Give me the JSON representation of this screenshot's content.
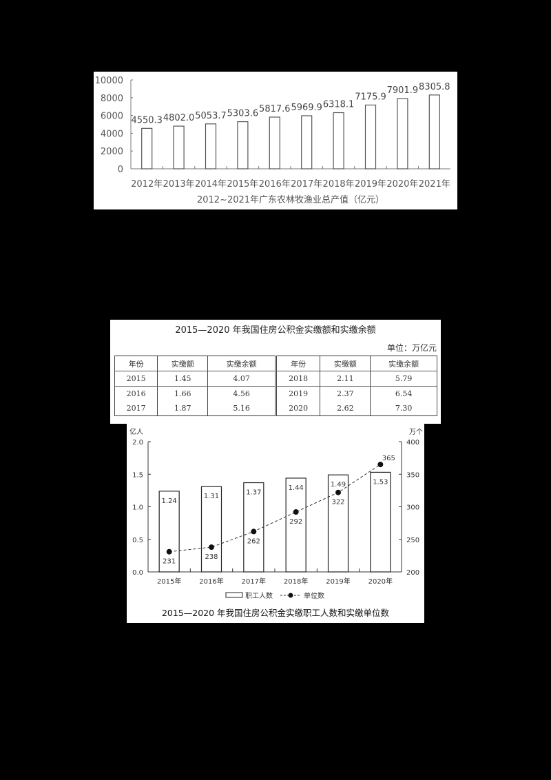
{
  "chart_data": [
    {
      "type": "bar",
      "title": "2012~2021年广东农林牧渔业总产值（亿元）",
      "xlabel": "",
      "ylabel": "",
      "categories": [
        "2012年",
        "2013年",
        "2014年",
        "2015年",
        "2016年",
        "2017年",
        "2018年",
        "2019年",
        "2020年",
        "2021年"
      ],
      "values": [
        4550.3,
        4802.0,
        5053.7,
        5303.6,
        5817.6,
        5969.9,
        6318.1,
        7175.9,
        7901.9,
        8305.8
      ],
      "value_labels": [
        "4550.3",
        "4802.0",
        "5053.7",
        "5303.6",
        "5817.6",
        "5969.9",
        "6318.1",
        "7175.9",
        "7901.9",
        "8305.8"
      ],
      "ylim": [
        0,
        10000
      ],
      "yticks": [
        "0",
        "2000",
        "4000",
        "6000",
        "8000",
        "10000"
      ],
      "grid": false,
      "legend": null
    },
    {
      "type": "table",
      "title": "2015—2020 年我国住房公积金实缴额和实缴余额",
      "unit": "单位：万亿元",
      "columns": [
        "年份",
        "实缴额",
        "实缴余额",
        "年份",
        "实缴额",
        "实缴余额"
      ],
      "rows": [
        [
          "2015",
          "1.45",
          "4.07",
          "2018",
          "2.11",
          "5.79"
        ],
        [
          "2016",
          "1.66",
          "4.56",
          "2019",
          "2.37",
          "6.54"
        ],
        [
          "2017",
          "1.87",
          "5.16",
          "2020",
          "2.62",
          "7.30"
        ]
      ]
    },
    {
      "type": "bar",
      "combo": "bar+line",
      "title": "2015—2020 年我国住房公积金实缴职工人数和实缴单位数",
      "categories": [
        "2015年",
        "2016年",
        "2017年",
        "2018年",
        "2019年",
        "2020年"
      ],
      "series": [
        {
          "name": "职工人数",
          "type": "bar",
          "axis": "left",
          "values": [
            1.24,
            1.31,
            1.37,
            1.44,
            1.49,
            1.53
          ],
          "labels": [
            "1.24",
            "1.31",
            "1.37",
            "1.44",
            "1.49",
            "1.53"
          ]
        },
        {
          "name": "单位数",
          "type": "line",
          "style": "dashed",
          "axis": "right",
          "values": [
            231,
            238,
            262,
            292,
            322,
            365
          ],
          "labels": [
            "231",
            "238",
            "262",
            "292",
            "322",
            "365"
          ]
        }
      ],
      "y_left": {
        "label": "亿人",
        "range": [
          0,
          2.0
        ],
        "ticks": [
          "0.0",
          "0.5",
          "1.0",
          "1.5",
          "2.0"
        ]
      },
      "y_right": {
        "label": "万个",
        "range": [
          200,
          400
        ],
        "ticks": [
          "200",
          "250",
          "300",
          "350",
          "400"
        ]
      },
      "legend": {
        "position": "bottom",
        "entries": [
          "职工人数",
          "单位数"
        ]
      },
      "grid": false
    }
  ]
}
